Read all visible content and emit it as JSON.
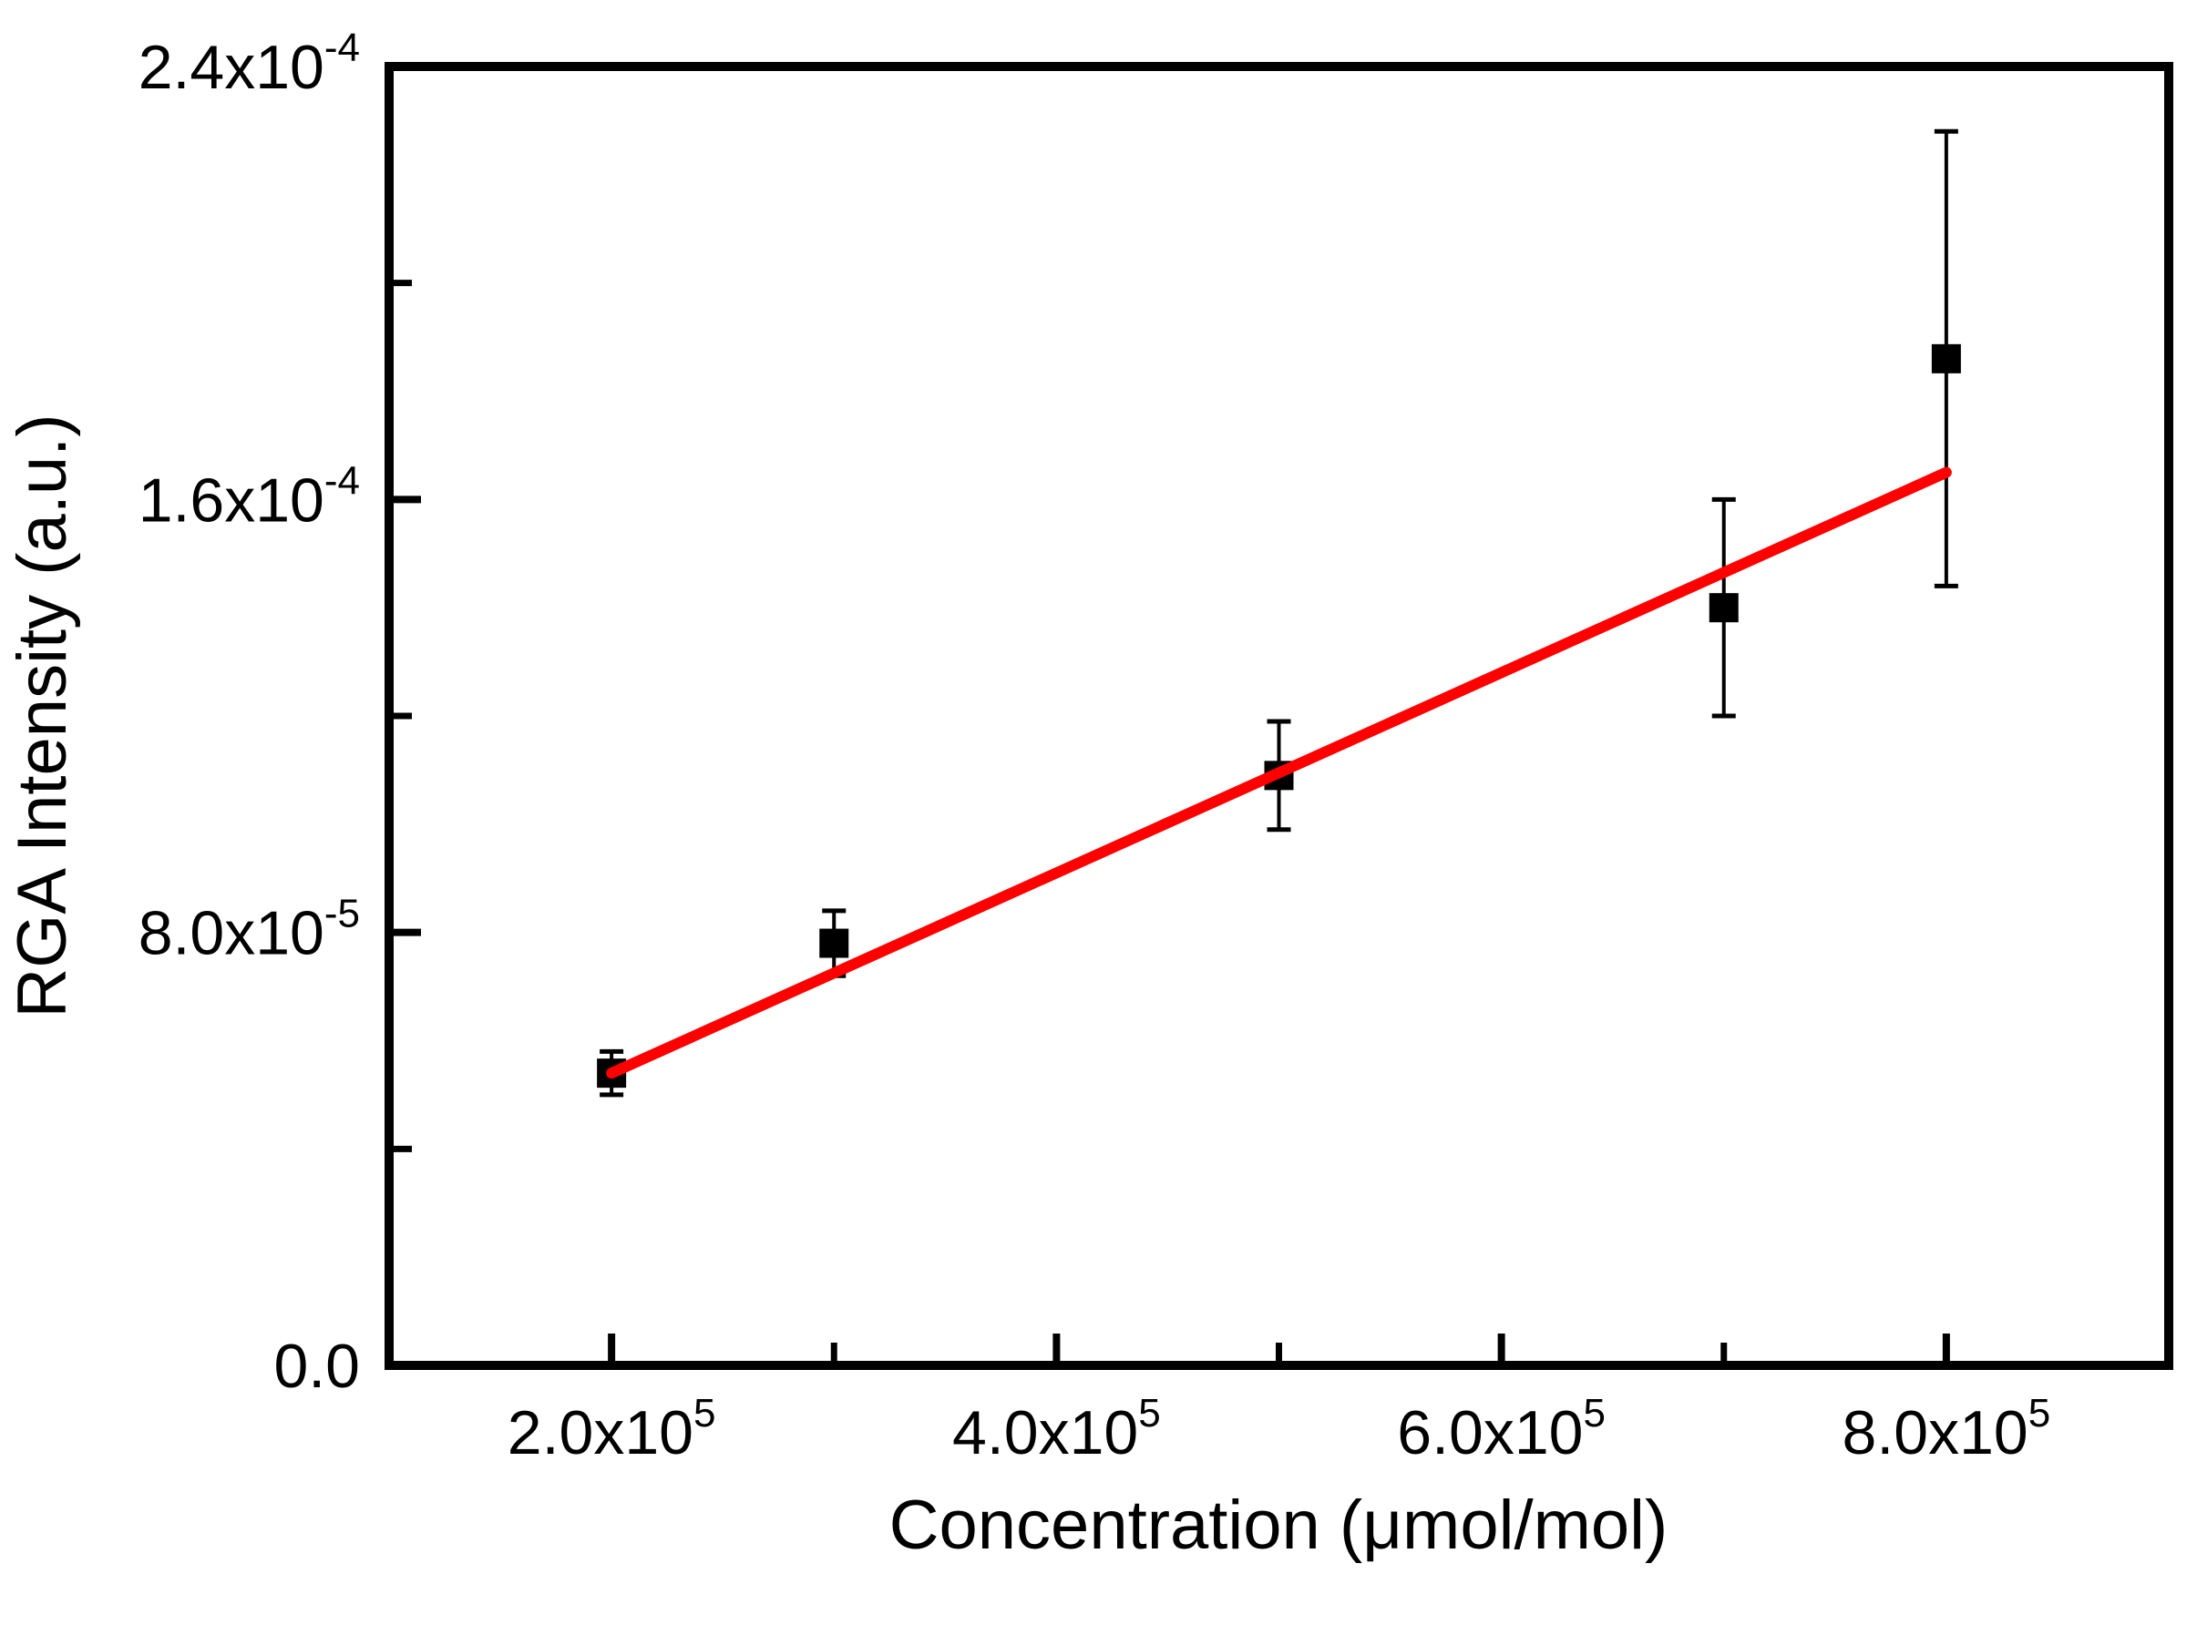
{
  "figure": {
    "background_color": "#ffffff",
    "frame_color": "#000000"
  },
  "chart_data": {
    "type": "scatter",
    "title": "",
    "xlabel": "Concentration (μmol/mol)",
    "ylabel": "RGA Intensity (a.u.)",
    "grid": "off",
    "legend": "none",
    "x_axis": {
      "min": 100000,
      "max": 900000,
      "major_tick_values": [
        200000,
        400000,
        600000,
        800000
      ],
      "major_tick_labels": [
        "2.0x10^5",
        "4.0x10^5",
        "6.0x10^5",
        "8.0x10^5"
      ],
      "minor_tick_values": [
        300000,
        500000,
        700000
      ]
    },
    "y_axis": {
      "min": 0,
      "max": 0.00024,
      "major_tick_values": [
        0,
        8e-05,
        0.00016,
        0.00024
      ],
      "major_tick_labels": [
        "0.0",
        "8.0x10^-5",
        "1.6x10^-4",
        "2.4x10^-4"
      ],
      "minor_tick_values": [
        4e-05,
        0.00012,
        0.0002
      ]
    },
    "series": [
      {
        "name": "measured-points",
        "type": "scatter",
        "marker": "square",
        "color": "#000000",
        "points": [
          {
            "x": 200000,
            "y": 5.4e-05,
            "yerr": 4e-06
          },
          {
            "x": 300000,
            "y": 7.8e-05,
            "yerr": 6e-06
          },
          {
            "x": 500000,
            "y": 0.000109,
            "yerr": 1e-05
          },
          {
            "x": 700000,
            "y": 0.00014,
            "yerr": 2e-05
          },
          {
            "x": 800000,
            "y": 0.000186,
            "yerr": 4.2e-05
          }
        ]
      },
      {
        "name": "linear-fit",
        "type": "line",
        "color": "#ff0000",
        "points": [
          {
            "x": 200000,
            "y": 5.4e-05
          },
          {
            "x": 800000,
            "y": 0.000165
          }
        ]
      }
    ]
  }
}
